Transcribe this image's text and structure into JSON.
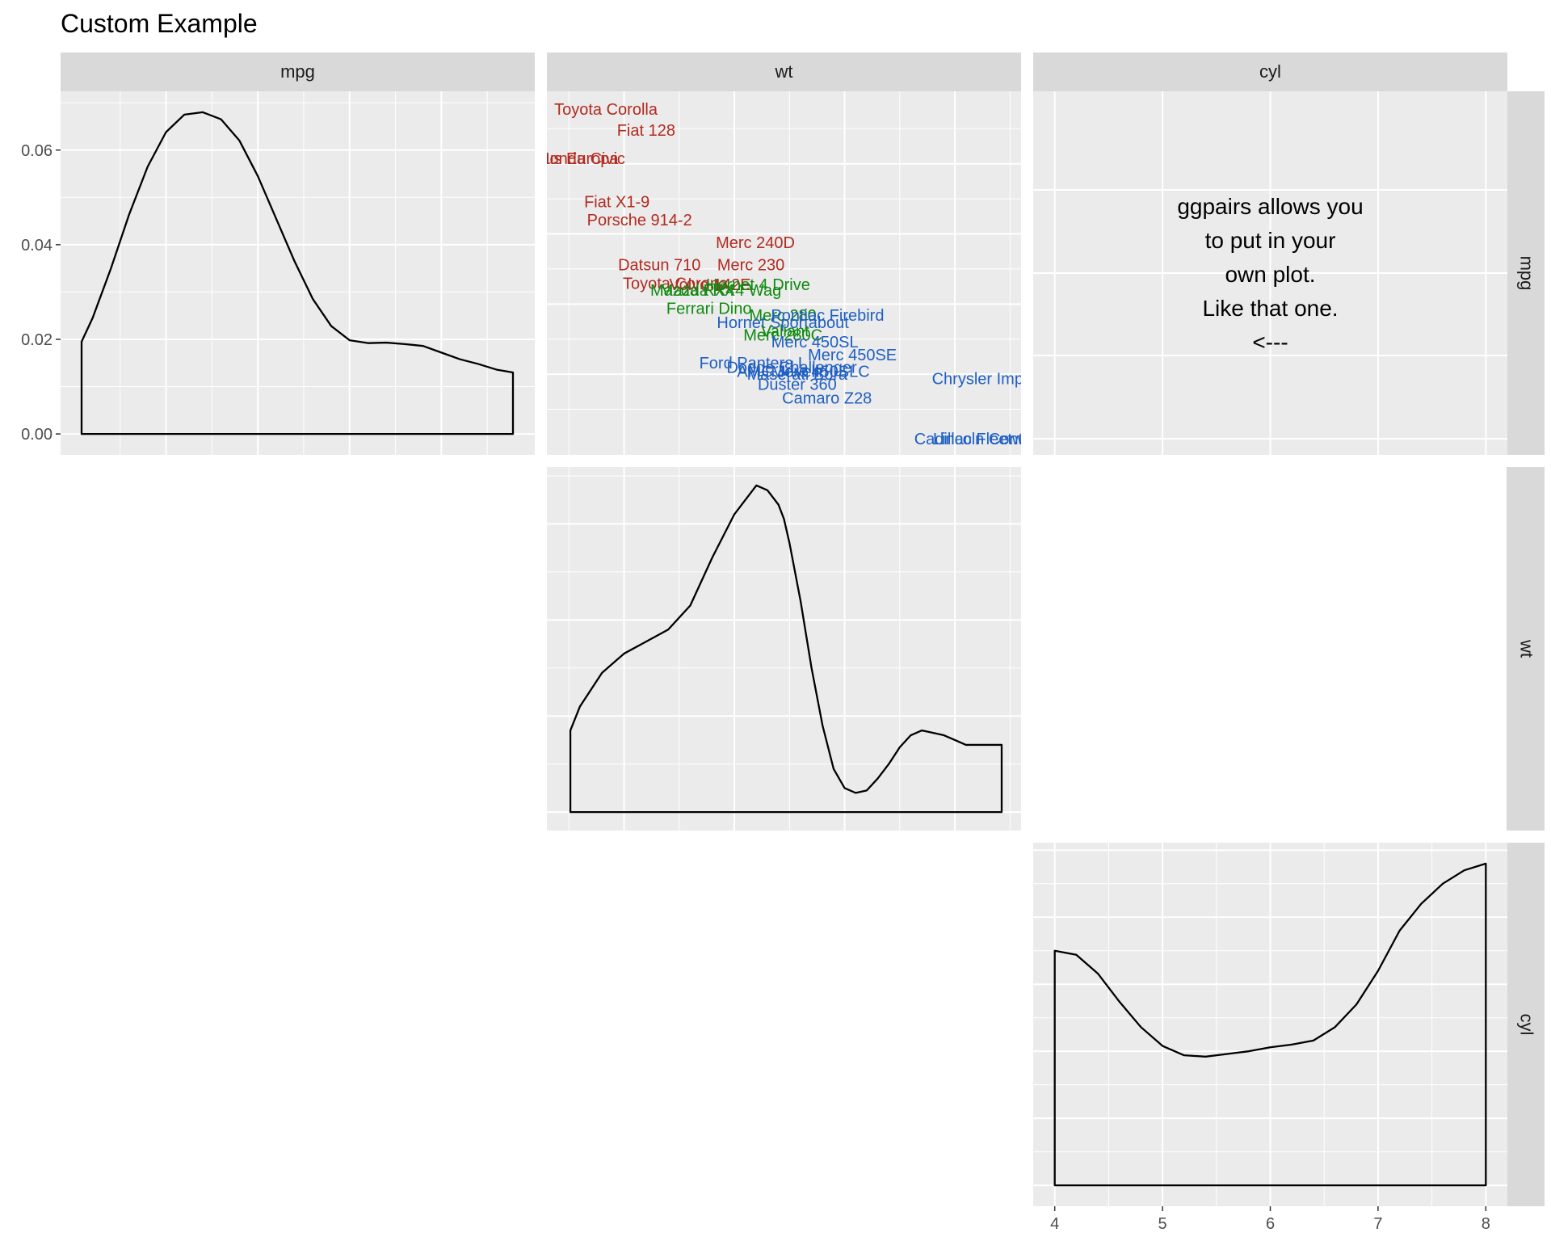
{
  "chart_data": {
    "type": "scatter-matrix",
    "title": "Custom Example",
    "variables": [
      "mpg",
      "wt",
      "cyl"
    ],
    "colors": {
      "cyl4": "#b22a1f",
      "cyl6": "#118a11",
      "cyl8": "#1f5fc4",
      "panel_bg": "#ebebeb",
      "strip_bg": "#d9d9d9",
      "grid": "#ffffff",
      "line": "#000000"
    },
    "grid": true,
    "custom_panel": {
      "row": "mpg",
      "col": "cyl",
      "lines": [
        "ggpairs allows you",
        "to put in your",
        "own plot.",
        "Like that one.",
        "<---"
      ]
    },
    "mpg_density": {
      "xlim": [
        10.4,
        33.9
      ],
      "ylim": [
        -0.0034,
        0.0714
      ],
      "yticks": [
        "0.00",
        "0.02",
        "0.04",
        "0.06"
      ],
      "ytick_values": [
        0,
        0.02,
        0.04,
        0.06
      ],
      "x": [
        10.4,
        11,
        12,
        13,
        14,
        15,
        16,
        17,
        18,
        19,
        20,
        21,
        22,
        23,
        24,
        25,
        26,
        27,
        28,
        29,
        30,
        31,
        32,
        33,
        33.9
      ],
      "y": [
        0.0195,
        0.0245,
        0.035,
        0.0465,
        0.0565,
        0.0638,
        0.0675,
        0.068,
        0.0665,
        0.062,
        0.0545,
        0.0455,
        0.0365,
        0.0285,
        0.0228,
        0.0198,
        0.0192,
        0.0193,
        0.019,
        0.0186,
        0.0172,
        0.0158,
        0.0148,
        0.0136,
        0.013
      ]
    },
    "wt_density": {
      "xlim": [
        1.3,
        5.6
      ],
      "ylim": [
        -0.03,
        0.71
      ],
      "x": [
        1.513,
        1.6,
        1.8,
        2.0,
        2.2,
        2.4,
        2.6,
        2.8,
        3.0,
        3.2,
        3.3,
        3.4,
        3.45,
        3.5,
        3.6,
        3.7,
        3.8,
        3.9,
        4.0,
        4.1,
        4.2,
        4.3,
        4.4,
        4.5,
        4.6,
        4.7,
        4.8,
        4.9,
        5.0,
        5.1,
        5.2,
        5.3,
        5.424
      ],
      "y": [
        0.17,
        0.22,
        0.29,
        0.33,
        0.355,
        0.38,
        0.43,
        0.53,
        0.62,
        0.68,
        0.67,
        0.64,
        0.61,
        0.56,
        0.44,
        0.3,
        0.18,
        0.09,
        0.05,
        0.04,
        0.045,
        0.07,
        0.1,
        0.135,
        0.16,
        0.17,
        0.165,
        0.16,
        0.15,
        0.14,
        0.14,
        0.14,
        0.14
      ]
    },
    "cyl_density": {
      "xlim": [
        3.8,
        8.2
      ],
      "ylim": [
        -0.012,
        0.252
      ],
      "xticks": [
        "4",
        "5",
        "6",
        "7",
        "8"
      ],
      "xtick_values": [
        4,
        5,
        6,
        7,
        8
      ],
      "x": [
        4,
        4.2,
        4.4,
        4.6,
        4.8,
        5.0,
        5.2,
        5.4,
        5.6,
        5.8,
        6.0,
        6.2,
        6.4,
        6.6,
        6.8,
        7.0,
        7.2,
        7.4,
        7.6,
        7.8,
        8.0
      ],
      "y": [
        0.175,
        0.172,
        0.158,
        0.137,
        0.118,
        0.104,
        0.097,
        0.096,
        0.098,
        0.1,
        0.103,
        0.105,
        0.108,
        0.118,
        0.135,
        0.16,
        0.19,
        0.21,
        0.225,
        0.235,
        0.24
      ]
    },
    "wt_vs_mpg_labels": {
      "xlim": [
        1.513,
        5.424
      ],
      "ylim": [
        10.4,
        33.9
      ],
      "points": [
        {
          "name": "Toyota Corolla",
          "x": 1.835,
          "y": 33.9,
          "cyl": 4
        },
        {
          "name": "Fiat 128",
          "x": 2.2,
          "y": 32.4,
          "cyl": 4
        },
        {
          "name": "Lotus Europa",
          "x": 1.513,
          "y": 30.4,
          "cyl": 4
        },
        {
          "name": "Honda Civic",
          "x": 1.615,
          "y": 30.4,
          "cyl": 4
        },
        {
          "name": "Fiat X1-9",
          "x": 1.935,
          "y": 27.3,
          "cyl": 4
        },
        {
          "name": "Porsche 914-2",
          "x": 2.14,
          "y": 26.0,
          "cyl": 4
        },
        {
          "name": "Merc 240D",
          "x": 3.19,
          "y": 24.4,
          "cyl": 4
        },
        {
          "name": "Datsun 710",
          "x": 2.32,
          "y": 22.8,
          "cyl": 4
        },
        {
          "name": "Merc 230",
          "x": 3.15,
          "y": 22.8,
          "cyl": 4
        },
        {
          "name": "Toyota Corona",
          "x": 2.465,
          "y": 21.5,
          "cyl": 4
        },
        {
          "name": "Volvo 142E",
          "x": 2.78,
          "y": 21.4,
          "cyl": 4
        },
        {
          "name": "Hornet 4 Drive",
          "x": 3.215,
          "y": 21.4,
          "cyl": 6
        },
        {
          "name": "Mazda RX4",
          "x": 2.62,
          "y": 21.0,
          "cyl": 6
        },
        {
          "name": "Mazda RX4 Wag",
          "x": 2.875,
          "y": 21.0,
          "cyl": 6
        },
        {
          "name": "Ferrari Dino",
          "x": 2.77,
          "y": 19.7,
          "cyl": 6
        },
        {
          "name": "Merc 280",
          "x": 3.44,
          "y": 19.2,
          "cyl": 6
        },
        {
          "name": "Pontiac Firebird",
          "x": 3.845,
          "y": 19.2,
          "cyl": 8
        },
        {
          "name": "Hornet Sportabout",
          "x": 3.44,
          "y": 18.7,
          "cyl": 8
        },
        {
          "name": "Valiant",
          "x": 3.46,
          "y": 18.1,
          "cyl": 6
        },
        {
          "name": "Merc 280C",
          "x": 3.44,
          "y": 17.8,
          "cyl": 6
        },
        {
          "name": "Merc 450SL",
          "x": 3.73,
          "y": 17.3,
          "cyl": 8
        },
        {
          "name": "Merc 450SE",
          "x": 4.07,
          "y": 16.4,
          "cyl": 8
        },
        {
          "name": "Ford Pantera L",
          "x": 3.17,
          "y": 15.8,
          "cyl": 8
        },
        {
          "name": "Dodge Challenger",
          "x": 3.52,
          "y": 15.5,
          "cyl": 8
        },
        {
          "name": "Merc 450SLC",
          "x": 3.78,
          "y": 15.2,
          "cyl": 8
        },
        {
          "name": "AMC Javelin",
          "x": 3.435,
          "y": 15.2,
          "cyl": 8
        },
        {
          "name": "Maserati Bora",
          "x": 3.57,
          "y": 15.0,
          "cyl": 8
        },
        {
          "name": "Chrysler Imperial",
          "x": 5.345,
          "y": 14.7,
          "cyl": 8
        },
        {
          "name": "Duster 360",
          "x": 3.57,
          "y": 14.3,
          "cyl": 8
        },
        {
          "name": "Camaro Z28",
          "x": 3.84,
          "y": 13.3,
          "cyl": 8
        },
        {
          "name": "Cadillac Fleetwood",
          "x": 5.25,
          "y": 10.4,
          "cyl": 8
        },
        {
          "name": "Lincoln Continental",
          "x": 5.424,
          "y": 10.4,
          "cyl": 8
        }
      ]
    }
  }
}
